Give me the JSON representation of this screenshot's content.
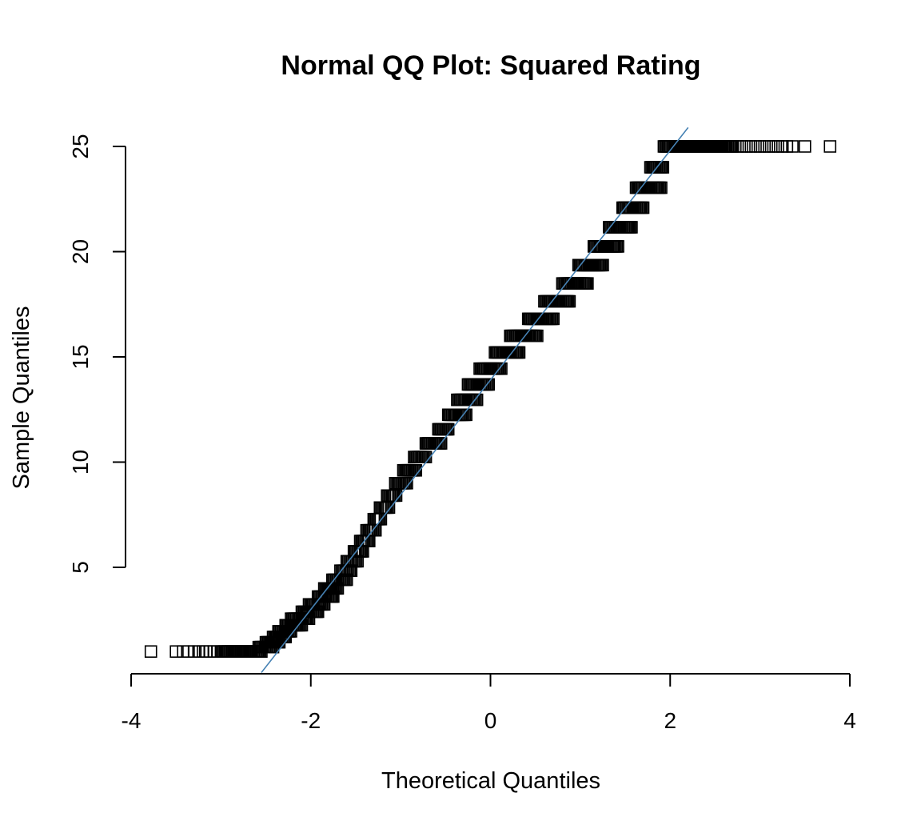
{
  "chart_data": {
    "type": "scatter",
    "title": "Normal QQ Plot: Squared Rating",
    "xlabel": "Theoretical Quantiles",
    "ylabel": "Sample Quantiles",
    "xlim": [
      -4,
      4
    ],
    "ylim": [
      0,
      25
    ],
    "x_ticks": [
      -4,
      -2,
      0,
      2,
      4
    ],
    "y_ticks": [
      5,
      10,
      15,
      20,
      25
    ],
    "x_tick_labels": [
      "-4",
      "-2",
      "0",
      "2",
      "4"
    ],
    "y_tick_labels": [
      "5",
      "10",
      "15",
      "20",
      "25"
    ],
    "point_shape": "open-square",
    "point_color": "#000000",
    "reference_line": {
      "color": "#4682b4",
      "points": [
        [
          -2.55,
          0
        ],
        [
          2.2,
          25.9
        ]
      ]
    },
    "steps": [
      {
        "y": 1.0,
        "x_from": -3.0,
        "x_to": -2.55
      },
      {
        "y": 1.21,
        "x_from": -2.58,
        "x_to": -2.42
      },
      {
        "y": 1.44,
        "x_from": -2.5,
        "x_to": -2.35
      },
      {
        "y": 1.69,
        "x_from": -2.42,
        "x_to": -2.28
      },
      {
        "y": 1.96,
        "x_from": -2.36,
        "x_to": -2.22
      },
      {
        "y": 2.25,
        "x_from": -2.28,
        "x_to": -2.1
      },
      {
        "y": 2.56,
        "x_from": -2.22,
        "x_to": -2.02
      },
      {
        "y": 2.89,
        "x_from": -2.1,
        "x_to": -1.92
      },
      {
        "y": 3.24,
        "x_from": -2.02,
        "x_to": -1.85
      },
      {
        "y": 3.61,
        "x_from": -1.92,
        "x_to": -1.75
      },
      {
        "y": 4.0,
        "x_from": -1.85,
        "x_to": -1.7
      },
      {
        "y": 4.41,
        "x_from": -1.76,
        "x_to": -1.6
      },
      {
        "y": 4.84,
        "x_from": -1.67,
        "x_to": -1.55
      },
      {
        "y": 5.29,
        "x_from": -1.6,
        "x_to": -1.48
      },
      {
        "y": 5.76,
        "x_from": -1.52,
        "x_to": -1.42
      },
      {
        "y": 6.25,
        "x_from": -1.45,
        "x_to": -1.35
      },
      {
        "y": 6.76,
        "x_from": -1.38,
        "x_to": -1.28
      },
      {
        "y": 7.29,
        "x_from": -1.3,
        "x_to": -1.22
      },
      {
        "y": 7.84,
        "x_from": -1.23,
        "x_to": -1.13
      },
      {
        "y": 8.41,
        "x_from": -1.15,
        "x_to": -1.05
      },
      {
        "y": 9.0,
        "x_from": -1.06,
        "x_to": -0.93
      },
      {
        "y": 9.61,
        "x_from": -0.97,
        "x_to": -0.83
      },
      {
        "y": 10.24,
        "x_from": -0.85,
        "x_to": -0.72
      },
      {
        "y": 10.89,
        "x_from": -0.72,
        "x_to": -0.55
      },
      {
        "y": 11.56,
        "x_from": -0.58,
        "x_to": -0.47
      },
      {
        "y": 12.25,
        "x_from": -0.47,
        "x_to": -0.27
      },
      {
        "y": 12.96,
        "x_from": -0.37,
        "x_to": -0.15
      },
      {
        "y": 13.69,
        "x_from": -0.25,
        "x_to": -0.02
      },
      {
        "y": 14.44,
        "x_from": -0.12,
        "x_to": 0.12
      },
      {
        "y": 15.21,
        "x_from": 0.05,
        "x_to": 0.32
      },
      {
        "y": 16.0,
        "x_from": 0.22,
        "x_to": 0.52
      },
      {
        "y": 16.81,
        "x_from": 0.42,
        "x_to": 0.7
      },
      {
        "y": 17.64,
        "x_from": 0.6,
        "x_to": 0.88
      },
      {
        "y": 18.49,
        "x_from": 0.8,
        "x_to": 1.08
      },
      {
        "y": 19.36,
        "x_from": 0.98,
        "x_to": 1.25
      },
      {
        "y": 20.25,
        "x_from": 1.15,
        "x_to": 1.42
      },
      {
        "y": 21.16,
        "x_from": 1.32,
        "x_to": 1.57
      },
      {
        "y": 22.09,
        "x_from": 1.47,
        "x_to": 1.7
      },
      {
        "y": 23.04,
        "x_from": 1.62,
        "x_to": 1.9
      },
      {
        "y": 24.01,
        "x_from": 1.78,
        "x_to": 1.92
      },
      {
        "y": 25.0,
        "x_from": 1.93,
        "x_to": 2.7
      }
    ],
    "outliers_low": {
      "y": 1.0,
      "x": [
        -3.78,
        -3.5,
        -3.42,
        -3.36,
        -3.3,
        -3.25,
        -3.2,
        -3.16,
        -3.12,
        -3.08,
        -3.04
      ]
    },
    "outliers_high": {
      "y": 25.0,
      "x": [
        2.75,
        2.8,
        2.85,
        2.9,
        2.95,
        3.0,
        3.05,
        3.1,
        3.15,
        3.2,
        3.25,
        3.3,
        3.36,
        3.5,
        3.78
      ]
    }
  }
}
